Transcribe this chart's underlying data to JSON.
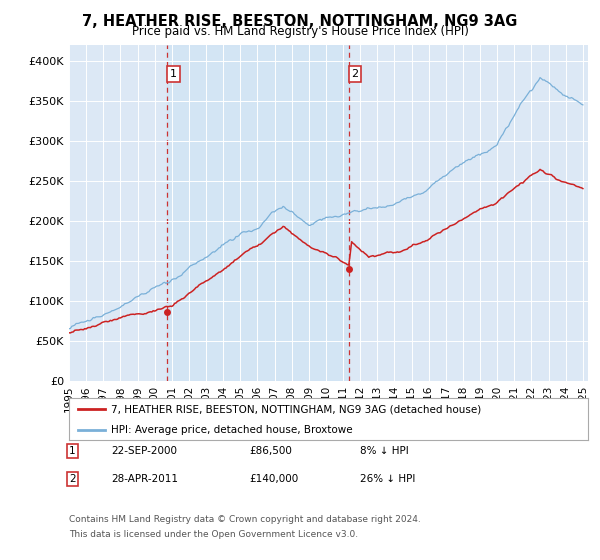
{
  "title": "7, HEATHER RISE, BEESTON, NOTTINGHAM, NG9 3AG",
  "subtitle": "Price paid vs. HM Land Registry's House Price Index (HPI)",
  "ylim": [
    0,
    420000
  ],
  "yticks": [
    0,
    50000,
    100000,
    150000,
    200000,
    250000,
    300000,
    350000,
    400000
  ],
  "ytick_labels": [
    "£0",
    "£50K",
    "£100K",
    "£150K",
    "£200K",
    "£250K",
    "£300K",
    "£350K",
    "£400K"
  ],
  "plot_bg_color": "#dce8f5",
  "shade_color": "#cdddf0",
  "hpi_color": "#7ab0d8",
  "price_color": "#cc2222",
  "sale1_year": 2000.75,
  "sale1_price": 86500,
  "sale2_year": 2011.33,
  "sale2_price": 140000,
  "legend_line1": "7, HEATHER RISE, BEESTON, NOTTINGHAM, NG9 3AG (detached house)",
  "legend_line2": "HPI: Average price, detached house, Broxtowe",
  "footer1": "Contains HM Land Registry data © Crown copyright and database right 2024.",
  "footer2": "This data is licensed under the Open Government Licence v3.0.",
  "sale1_text_date": "22-SEP-2000",
  "sale1_text_price": "£86,500",
  "sale1_text_hpi": "8% ↓ HPI",
  "sale2_text_date": "28-APR-2011",
  "sale2_text_price": "£140,000",
  "sale2_text_hpi": "26% ↓ HPI"
}
